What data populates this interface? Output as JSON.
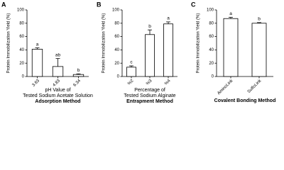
{
  "chart_data": [
    {
      "type": "bar",
      "panel": "A",
      "ylabel": "Protein Immobilization Yield (%)",
      "categories": [
        "3.63",
        "4.83",
        "6.34"
      ],
      "values": [
        41,
        15,
        3
      ],
      "errors": [
        2,
        12,
        1
      ],
      "letters": [
        "a",
        "ab",
        "b"
      ],
      "xlabel": [
        "pH Value of",
        "Tested Sodium Acetate Solution"
      ],
      "method": "Adsorption Method",
      "ylim": [
        0,
        100
      ],
      "yticks": [
        0,
        20,
        40,
        60,
        80,
        100
      ]
    },
    {
      "type": "bar",
      "panel": "B",
      "ylabel": "Protein Immobilization Yield (%)",
      "categories": [
        "%2",
        "%3",
        "%4"
      ],
      "values": [
        14,
        63,
        79
      ],
      "errors": [
        2,
        7,
        3
      ],
      "letters": [
        "c",
        "b",
        "a"
      ],
      "xlabel": [
        "Percentage of",
        "Tested Sodium Alginate"
      ],
      "method": "Entrapment Method",
      "ylim": [
        0,
        100
      ],
      "yticks": [
        0,
        20,
        40,
        60,
        80,
        100
      ]
    },
    {
      "type": "bar",
      "panel": "C",
      "ylabel": "Protein Immobilization Yield (%)",
      "categories": [
        "AminoLink",
        "SulfoLink"
      ],
      "values": [
        87,
        80
      ],
      "errors": [
        2,
        1
      ],
      "letters": [
        "a",
        "b"
      ],
      "method": "Covalent Bonding Method",
      "ylim": [
        0,
        100
      ],
      "yticks": [
        0,
        20,
        40,
        60,
        80,
        100
      ]
    }
  ]
}
